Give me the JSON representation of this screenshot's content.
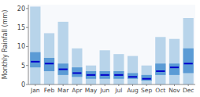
{
  "chart_data": {
    "type": "bar",
    "ylabel": "Monthly Rainfall (mm)",
    "categories": [
      "Jan",
      "Feb",
      "Mar",
      "Apr",
      "May",
      "Jun",
      "Jul",
      "Aug",
      "Sep",
      "Oct",
      "Nov",
      "Dec"
    ],
    "series": [
      {
        "type": "bar",
        "color": "#b8d4ea",
        "low": [
          0.0,
          0.0,
          0.0,
          0.0,
          0.0,
          0.0,
          0.0,
          0.0,
          0.0,
          0.0,
          0.0,
          0.0
        ],
        "high": [
          20.5,
          13.5,
          16.5,
          9.5,
          5.0,
          9.0,
          8.0,
          7.5,
          5.0,
          12.5,
          12.0,
          17.5
        ]
      },
      {
        "type": "bar",
        "color": "#5b9bd5",
        "low": [
          4.5,
          3.5,
          2.5,
          2.0,
          1.5,
          1.5,
          1.5,
          1.5,
          1.0,
          2.5,
          2.5,
          3.0
        ],
        "high": [
          8.5,
          7.0,
          5.5,
          4.5,
          3.5,
          3.5,
          3.5,
          3.0,
          2.5,
          5.5,
          5.5,
          9.5
        ]
      },
      {
        "type": "scatter",
        "marker": "line",
        "color": "#0000cc",
        "values": [
          6.0,
          5.5,
          4.0,
          3.0,
          2.5,
          2.5,
          2.5,
          2.0,
          1.5,
          3.5,
          4.5,
          5.5
        ]
      }
    ],
    "ylim": [
      0,
      21
    ],
    "yticks": [
      0,
      5,
      10,
      15,
      20
    ],
    "grid": false
  }
}
